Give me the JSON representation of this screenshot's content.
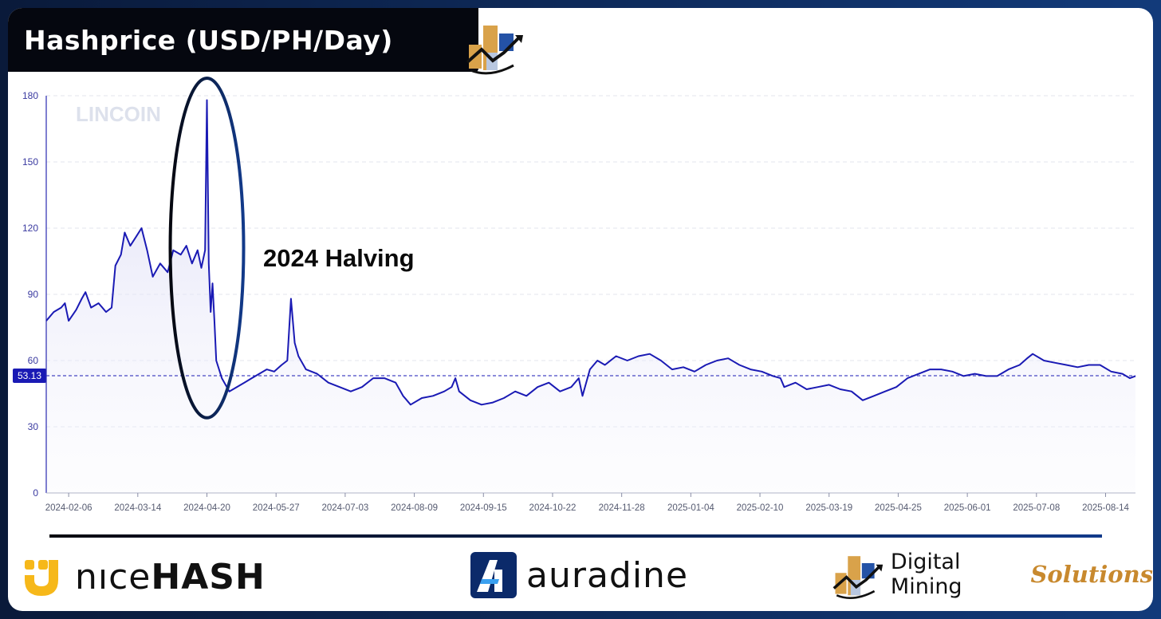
{
  "header": {
    "title": "Hashprice (USD/PH/Day)"
  },
  "watermark": "LINCOIN",
  "annotation": {
    "label": "2024 Halving"
  },
  "current_value_label": "53.13",
  "footer": {
    "nicehash": {
      "light": "nıce",
      "bold": "HASH"
    },
    "auradine": "auradine",
    "dms": {
      "primary": "Digital Mining",
      "accent": "Solutions"
    }
  },
  "colors": {
    "line": "#1a1ab4",
    "fill_top": "#d8d8f4",
    "title_bg": "#05070f",
    "frame_bg": "#0f2a66",
    "accent_orange": "#d9a24a",
    "accent_blue": "#2452a6",
    "nicehash_yellow": "#f6b81a"
  },
  "chart_data": {
    "type": "area",
    "title": "Hashprice (USD/PH/Day)",
    "xlabel": "",
    "ylabel": "",
    "ylim": [
      0,
      180
    ],
    "yticks": [
      0,
      30,
      60,
      90,
      120,
      150,
      180
    ],
    "x_tick_labels": [
      "2024-02-06",
      "2024-03-14",
      "2024-04-20",
      "2024-05-27",
      "2024-07-03",
      "2024-08-09",
      "2024-09-15",
      "2024-10-22",
      "2024-11-28",
      "2025-01-04",
      "2025-02-10",
      "2025-03-19",
      "2025-04-25",
      "2025-06-01",
      "2025-07-08",
      "2025-08-14"
    ],
    "x_range": [
      "2024-01-25",
      "2025-08-30"
    ],
    "grid": true,
    "current_value": 53.13,
    "series": [
      {
        "points": [
          [
            "2024-01-25",
            78
          ],
          [
            "2024-01-29",
            82
          ],
          [
            "2024-02-02",
            84
          ],
          [
            "2024-02-04",
            86
          ],
          [
            "2024-02-06",
            78
          ],
          [
            "2024-02-10",
            83
          ],
          [
            "2024-02-13",
            88
          ],
          [
            "2024-02-15",
            91
          ],
          [
            "2024-02-18",
            84
          ],
          [
            "2024-02-22",
            86
          ],
          [
            "2024-02-26",
            82
          ],
          [
            "2024-02-29",
            84
          ],
          [
            "2024-03-02",
            103
          ],
          [
            "2024-03-05",
            108
          ],
          [
            "2024-03-07",
            118
          ],
          [
            "2024-03-10",
            112
          ],
          [
            "2024-03-13",
            116
          ],
          [
            "2024-03-16",
            120
          ],
          [
            "2024-03-19",
            110
          ],
          [
            "2024-03-22",
            98
          ],
          [
            "2024-03-26",
            104
          ],
          [
            "2024-03-30",
            100
          ],
          [
            "2024-04-02",
            110
          ],
          [
            "2024-04-06",
            108
          ],
          [
            "2024-04-09",
            112
          ],
          [
            "2024-04-12",
            104
          ],
          [
            "2024-04-15",
            110
          ],
          [
            "2024-04-17",
            102
          ],
          [
            "2024-04-19",
            110
          ],
          [
            "2024-04-20",
            178
          ],
          [
            "2024-04-21",
            104
          ],
          [
            "2024-04-22",
            82
          ],
          [
            "2024-04-23",
            95
          ],
          [
            "2024-04-24",
            78
          ],
          [
            "2024-04-25",
            60
          ],
          [
            "2024-04-28",
            52
          ],
          [
            "2024-05-02",
            46
          ],
          [
            "2024-05-06",
            48
          ],
          [
            "2024-05-10",
            50
          ],
          [
            "2024-05-14",
            52
          ],
          [
            "2024-05-18",
            54
          ],
          [
            "2024-05-22",
            56
          ],
          [
            "2024-05-26",
            55
          ],
          [
            "2024-05-30",
            58
          ],
          [
            "2024-06-02",
            60
          ],
          [
            "2024-06-04",
            88
          ],
          [
            "2024-06-06",
            68
          ],
          [
            "2024-06-08",
            62
          ],
          [
            "2024-06-12",
            56
          ],
          [
            "2024-06-18",
            54
          ],
          [
            "2024-06-24",
            50
          ],
          [
            "2024-06-30",
            48
          ],
          [
            "2024-07-06",
            46
          ],
          [
            "2024-07-12",
            48
          ],
          [
            "2024-07-18",
            52
          ],
          [
            "2024-07-24",
            52
          ],
          [
            "2024-07-30",
            50
          ],
          [
            "2024-08-03",
            44
          ],
          [
            "2024-08-07",
            40
          ],
          [
            "2024-08-13",
            43
          ],
          [
            "2024-08-19",
            44
          ],
          [
            "2024-08-25",
            46
          ],
          [
            "2024-08-29",
            48
          ],
          [
            "2024-08-31",
            52
          ],
          [
            "2024-09-02",
            46
          ],
          [
            "2024-09-08",
            42
          ],
          [
            "2024-09-14",
            40
          ],
          [
            "2024-09-20",
            41
          ],
          [
            "2024-09-26",
            43
          ],
          [
            "2024-10-02",
            46
          ],
          [
            "2024-10-08",
            44
          ],
          [
            "2024-10-14",
            48
          ],
          [
            "2024-10-20",
            50
          ],
          [
            "2024-10-26",
            46
          ],
          [
            "2024-11-01",
            48
          ],
          [
            "2024-11-05",
            52
          ],
          [
            "2024-11-07",
            44
          ],
          [
            "2024-11-11",
            56
          ],
          [
            "2024-11-15",
            60
          ],
          [
            "2024-11-19",
            58
          ],
          [
            "2024-11-25",
            62
          ],
          [
            "2024-12-01",
            60
          ],
          [
            "2024-12-07",
            62
          ],
          [
            "2024-12-13",
            63
          ],
          [
            "2024-12-19",
            60
          ],
          [
            "2024-12-25",
            56
          ],
          [
            "2024-12-31",
            57
          ],
          [
            "2025-01-06",
            55
          ],
          [
            "2025-01-12",
            58
          ],
          [
            "2025-01-18",
            60
          ],
          [
            "2025-01-24",
            61
          ],
          [
            "2025-01-30",
            58
          ],
          [
            "2025-02-05",
            56
          ],
          [
            "2025-02-11",
            55
          ],
          [
            "2025-02-17",
            53
          ],
          [
            "2025-02-21",
            52
          ],
          [
            "2025-02-23",
            48
          ],
          [
            "2025-03-01",
            50
          ],
          [
            "2025-03-07",
            47
          ],
          [
            "2025-03-13",
            48
          ],
          [
            "2025-03-19",
            49
          ],
          [
            "2025-03-25",
            47
          ],
          [
            "2025-03-31",
            46
          ],
          [
            "2025-04-06",
            42
          ],
          [
            "2025-04-12",
            44
          ],
          [
            "2025-04-18",
            46
          ],
          [
            "2025-04-24",
            48
          ],
          [
            "2025-04-30",
            52
          ],
          [
            "2025-05-06",
            54
          ],
          [
            "2025-05-12",
            56
          ],
          [
            "2025-05-18",
            56
          ],
          [
            "2025-05-24",
            55
          ],
          [
            "2025-05-30",
            53
          ],
          [
            "2025-06-05",
            54
          ],
          [
            "2025-06-11",
            53
          ],
          [
            "2025-06-17",
            53
          ],
          [
            "2025-06-23",
            56
          ],
          [
            "2025-06-29",
            58
          ],
          [
            "2025-07-03",
            61
          ],
          [
            "2025-07-06",
            63
          ],
          [
            "2025-07-12",
            60
          ],
          [
            "2025-07-18",
            59
          ],
          [
            "2025-07-24",
            58
          ],
          [
            "2025-07-30",
            57
          ],
          [
            "2025-08-05",
            58
          ],
          [
            "2025-08-11",
            58
          ],
          [
            "2025-08-17",
            55
          ],
          [
            "2025-08-23",
            54
          ],
          [
            "2025-08-27",
            52
          ],
          [
            "2025-08-30",
            53
          ]
        ]
      }
    ]
  }
}
